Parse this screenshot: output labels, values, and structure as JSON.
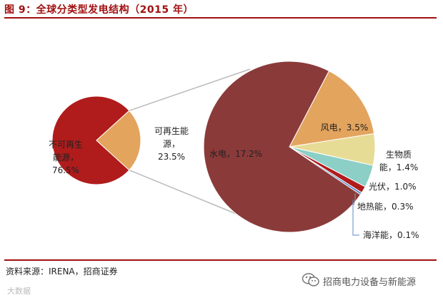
{
  "header": {
    "title": "图 9：全球分类型发电结构（2015 年）"
  },
  "footer": {
    "source": "资料来源：IRENA，招商证券",
    "brand": "招商电力设备与新能源",
    "watermark": "大数据"
  },
  "icons": {
    "wechat": "wechat-icon"
  },
  "colors": {
    "title": "#a01010",
    "nonRenewable": "#b01c1c",
    "renewable": "#e3a45e",
    "hydro": "#8b3a3a",
    "wind": "#e3a45e",
    "biomass": "#e7dc96",
    "solar": "#8ccfc7",
    "geothermal": "#b01c1c",
    "ocean": "#5b89c9"
  },
  "chart_data": [
    {
      "type": "pie",
      "slices": [
        {
          "label_lines": [
            "不可再生",
            "能源，",
            "76.5%"
          ],
          "value": 76.5
        },
        {
          "label_lines": [
            "可再生能",
            "源，",
            "23.5%"
          ],
          "value": 23.5
        }
      ]
    },
    {
      "type": "pie",
      "slices": [
        {
          "label_lines": [
            "风电，3.5%"
          ],
          "value": 3.5
        },
        {
          "label_lines": [
            "生物质",
            "能，1.4%"
          ],
          "value": 1.4
        },
        {
          "label_lines": [
            "光伏，1.0%"
          ],
          "value": 1.0
        },
        {
          "label_lines": [
            "地热能，0.3%"
          ],
          "value": 0.3
        },
        {
          "label_lines": [
            "海洋能，0.1%"
          ],
          "value": 0.1
        },
        {
          "label_lines": [
            "水电，17.2%"
          ],
          "value": 17.2
        }
      ]
    }
  ]
}
